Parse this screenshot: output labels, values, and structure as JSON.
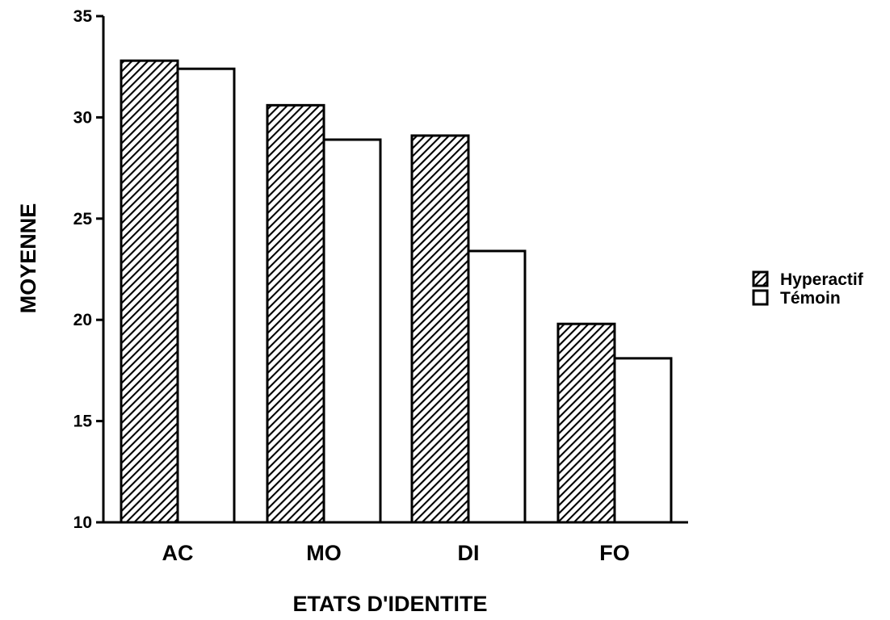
{
  "chart_data": {
    "type": "bar",
    "categories": [
      "AC",
      "MO",
      "DI",
      "FO"
    ],
    "series": [
      {
        "name": "Hyperactif",
        "values": [
          32.8,
          30.6,
          29.1,
          19.8
        ],
        "pattern": "hatched"
      },
      {
        "name": "Témoin",
        "values": [
          32.4,
          28.9,
          23.4,
          18.1
        ],
        "pattern": "plain"
      }
    ],
    "title": "",
    "xlabel": "ETATS D'IDENTITE",
    "ylabel": "MOYENNE",
    "ylim": [
      10,
      35
    ],
    "yticks": [
      10,
      15,
      20,
      25,
      30,
      35
    ],
    "grid": false,
    "legend_position": "right"
  }
}
